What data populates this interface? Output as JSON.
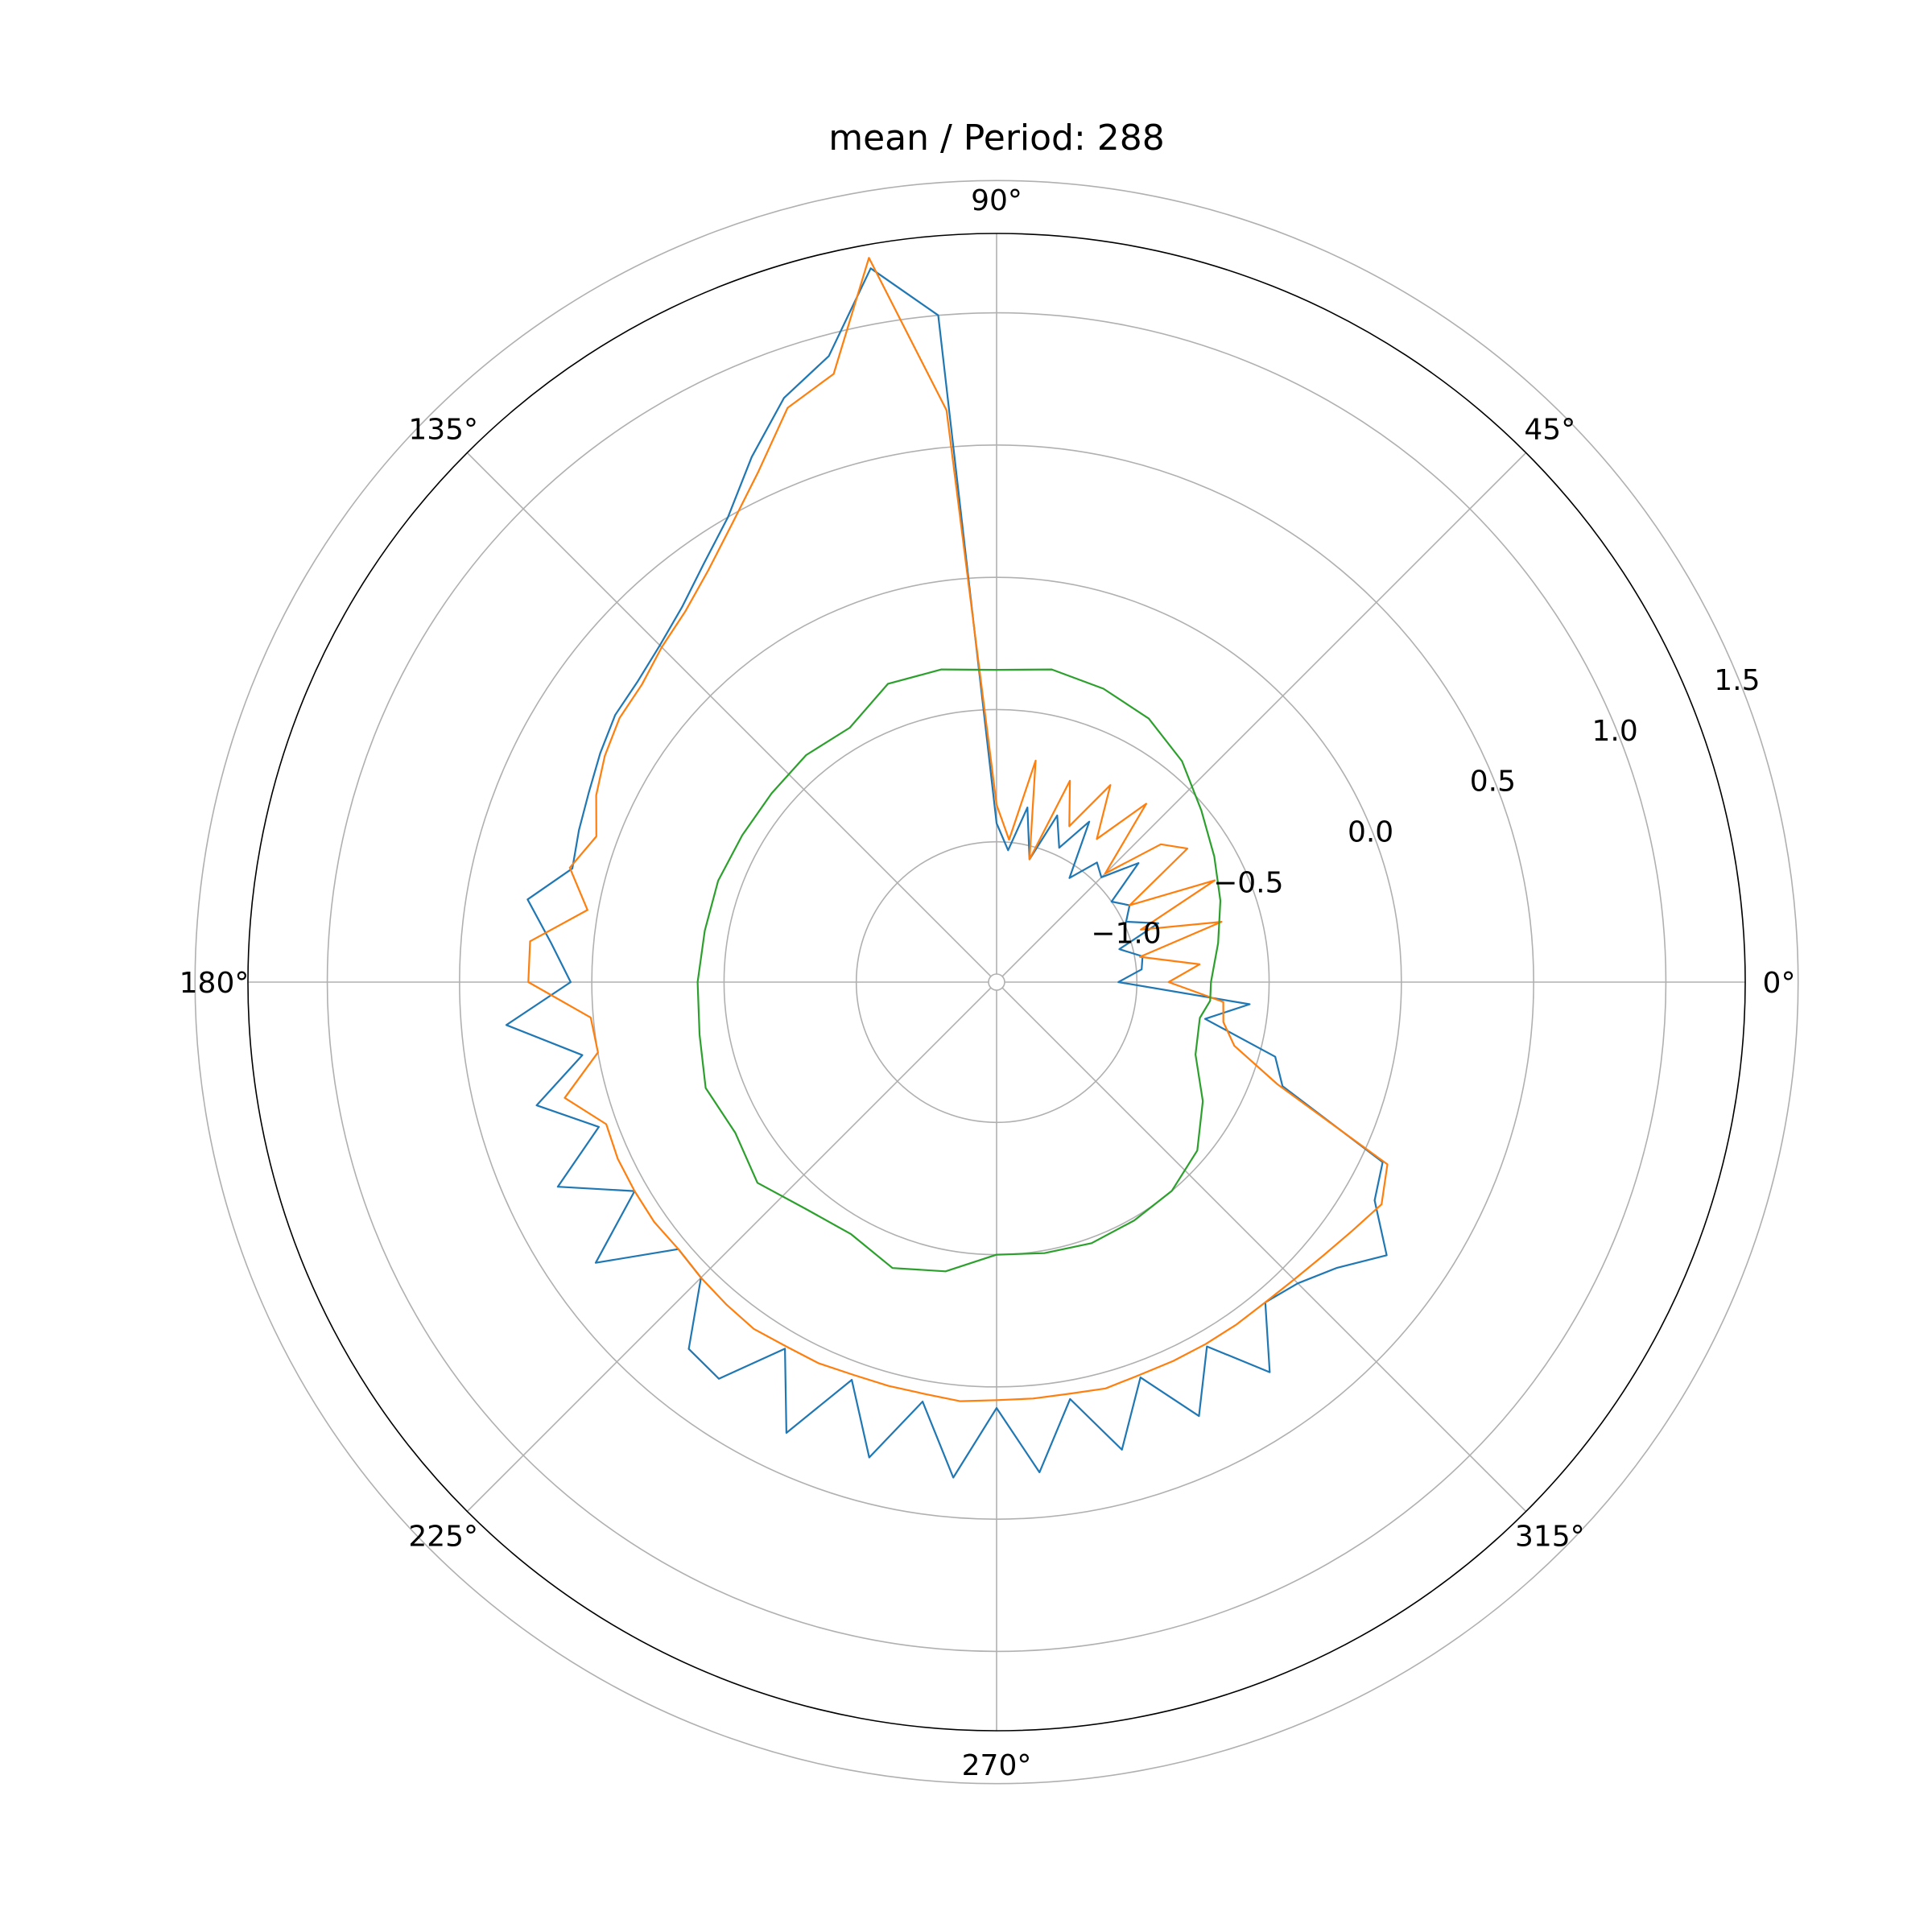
{
  "chart_data": {
    "type": "line",
    "projection": "polar",
    "title": "mean / Period: 288",
    "theta_unit": "degrees",
    "theta_ticks": [
      "0°",
      "45°",
      "90°",
      "135°",
      "180°",
      "225°",
      "270°",
      "315°"
    ],
    "r_ticks": [
      "−1.0",
      "−0.5",
      "0.0",
      "0.5",
      "1.0",
      "1.5"
    ],
    "r_tick_values": [
      -1.0,
      -0.5,
      0.0,
      0.5,
      1.0,
      1.5
    ],
    "r_gridlines": [
      -1.0,
      -0.5,
      0.0,
      0.5,
      1.0,
      1.5
    ],
    "rlim": [
      -1.5,
      1.3
    ],
    "grid": true,
    "legend": "none",
    "series": [
      {
        "color": "#1f77b4",
        "points": [
          [
            0,
            -1.07
          ],
          [
            5,
            -0.98
          ],
          [
            10,
            -0.97
          ],
          [
            15,
            -1.05
          ],
          [
            20,
            -0.88
          ],
          [
            25,
            -0.99
          ],
          [
            30,
            -0.95
          ],
          [
            35,
            -1.0
          ],
          [
            40,
            -0.83
          ],
          [
            45,
            -0.97
          ],
          [
            50,
            -0.94
          ],
          [
            55,
            -1.05
          ],
          [
            60,
            -0.83
          ],
          [
            65,
            -0.97
          ],
          [
            70,
            -0.86
          ],
          [
            75,
            -1.05
          ],
          [
            80,
            -0.86
          ],
          [
            85,
            -1.03
          ],
          [
            90,
            -0.93
          ],
          [
            95,
            1.0
          ],
          [
            100,
            1.21
          ],
          [
            105,
            0.92
          ],
          [
            110,
            0.82
          ],
          [
            115,
            0.66
          ],
          [
            120,
            0.5
          ],
          [
            125,
            0.4
          ],
          [
            130,
            0.32
          ],
          [
            135,
            0.27
          ],
          [
            140,
            0.24
          ],
          [
            145,
            0.23
          ],
          [
            150,
            0.2
          ],
          [
            155,
            0.17
          ],
          [
            160,
            0.15
          ],
          [
            165,
            0.13
          ],
          [
            170,
            0.27
          ],
          [
            175,
            0.16
          ],
          [
            180,
            0.08
          ],
          [
            185,
            0.33
          ],
          [
            190,
            0.06
          ],
          [
            195,
            0.27
          ],
          [
            200,
            0.07
          ],
          [
            205,
            0.3
          ],
          [
            210,
            0.05
          ],
          [
            215,
            0.32
          ],
          [
            220,
            0.04
          ],
          [
            225,
            0.05
          ],
          [
            230,
            0.28
          ],
          [
            235,
            0.3
          ],
          [
            240,
            0.07
          ],
          [
            245,
            0.35
          ],
          [
            250,
            0.07
          ],
          [
            255,
            0.33
          ],
          [
            260,
            0.08
          ],
          [
            265,
            0.35
          ],
          [
            270,
            0.08
          ],
          [
            275,
            0.33
          ],
          [
            280,
            0.07
          ],
          [
            285,
            0.3
          ],
          [
            290,
            0.06
          ],
          [
            295,
            0.28
          ],
          [
            300,
            0.06
          ],
          [
            305,
            0.27
          ],
          [
            310,
            0.05
          ],
          [
            315,
            0.08
          ],
          [
            320,
            0.15
          ],
          [
            325,
            0.27
          ],
          [
            330,
            0.12
          ],
          [
            335,
            0.08
          ],
          [
            340,
            -0.38
          ],
          [
            345,
            -0.44
          ],
          [
            350,
            -0.73
          ],
          [
            355,
            -0.57
          ]
        ]
      },
      {
        "color": "#ff7f0e",
        "points": [
          [
            0,
            -0.88
          ],
          [
            5,
            -0.76
          ],
          [
            10,
            -0.98
          ],
          [
            15,
            -0.65
          ],
          [
            20,
            -0.95
          ],
          [
            25,
            -0.62
          ],
          [
            30,
            -0.95
          ],
          [
            35,
            -0.65
          ],
          [
            40,
            -0.72
          ],
          [
            45,
            -0.95
          ],
          [
            50,
            -0.65
          ],
          [
            55,
            -0.87
          ],
          [
            60,
            -0.67
          ],
          [
            65,
            -0.88
          ],
          [
            70,
            -0.72
          ],
          [
            75,
            -1.05
          ],
          [
            80,
            -0.68
          ],
          [
            85,
            -0.99
          ],
          [
            90,
            -0.86
          ],
          [
            95,
            0.64
          ],
          [
            100,
            1.25
          ],
          [
            105,
            0.85
          ],
          [
            110,
            0.78
          ],
          [
            115,
            0.6
          ],
          [
            120,
            0.47
          ],
          [
            125,
            0.37
          ],
          [
            130,
            0.3
          ],
          [
            135,
            0.26
          ],
          [
            140,
            0.22
          ],
          [
            145,
            0.21
          ],
          [
            150,
            0.18
          ],
          [
            155,
            0.14
          ],
          [
            160,
            0.08
          ],
          [
            165,
            0.14
          ],
          [
            170,
            0.04
          ],
          [
            175,
            0.24
          ],
          [
            180,
            0.24
          ],
          [
            185,
            0.01
          ],
          [
            190,
            0.0
          ],
          [
            195,
            0.16
          ],
          [
            200,
            0.04
          ],
          [
            205,
            0.05
          ],
          [
            210,
            0.05
          ],
          [
            215,
            0.05
          ],
          [
            220,
            0.04
          ],
          [
            225,
            0.05
          ],
          [
            230,
            0.06
          ],
          [
            235,
            0.07
          ],
          [
            240,
            0.06
          ],
          [
            245,
            0.06
          ],
          [
            250,
            0.05
          ],
          [
            255,
            0.05
          ],
          [
            260,
            0.05
          ],
          [
            265,
            0.06
          ],
          [
            270,
            0.05
          ],
          [
            275,
            0.05
          ],
          [
            280,
            0.05
          ],
          [
            285,
            0.06
          ],
          [
            290,
            0.05
          ],
          [
            295,
            0.05
          ],
          [
            300,
            0.05
          ],
          [
            305,
            0.05
          ],
          [
            310,
            0.05
          ],
          [
            315,
            0.06
          ],
          [
            320,
            0.08
          ],
          [
            325,
            0.11
          ],
          [
            330,
            0.15
          ],
          [
            335,
            0.1
          ],
          [
            340,
            -0.4
          ],
          [
            345,
            -0.6
          ],
          [
            350,
            -0.66
          ],
          [
            355,
            -0.67
          ]
        ]
      },
      {
        "color": "#2ca02c",
        "points": [
          [
            0,
            -0.72
          ],
          [
            10,
            -0.68
          ],
          [
            20,
            -0.63
          ],
          [
            30,
            -0.58
          ],
          [
            40,
            -0.52
          ],
          [
            50,
            -0.44
          ],
          [
            60,
            -0.38
          ],
          [
            70,
            -0.35
          ],
          [
            80,
            -0.33
          ],
          [
            90,
            -0.35
          ],
          [
            100,
            -0.33
          ],
          [
            110,
            -0.33
          ],
          [
            120,
            -0.42
          ],
          [
            130,
            -0.41
          ],
          [
            140,
            -0.42
          ],
          [
            150,
            -0.42
          ],
          [
            160,
            -0.41
          ],
          [
            170,
            -0.41
          ],
          [
            180,
            -0.4
          ],
          [
            190,
            -0.39
          ],
          [
            200,
            -0.36
          ],
          [
            210,
            -0.39
          ],
          [
            220,
            -0.35
          ],
          [
            230,
            -0.41
          ],
          [
            240,
            -0.43
          ],
          [
            250,
            -0.38
          ],
          [
            260,
            -0.42
          ],
          [
            270,
            -0.5
          ],
          [
            280,
            -0.49
          ],
          [
            290,
            -0.48
          ],
          [
            300,
            -0.49
          ],
          [
            310,
            -0.5
          ],
          [
            320,
            -0.54
          ],
          [
            330,
            -0.63
          ],
          [
            340,
            -0.73
          ],
          [
            350,
            -0.75
          ],
          [
            355,
            -0.72
          ]
        ]
      }
    ]
  }
}
